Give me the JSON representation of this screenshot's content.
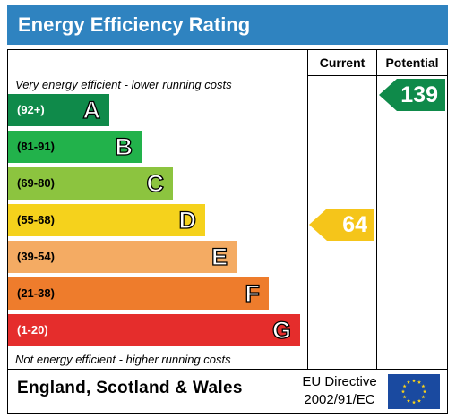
{
  "header": {
    "title": "Energy Efficiency Rating"
  },
  "columns": {
    "current": "Current",
    "potential": "Potential"
  },
  "notes": {
    "top": "Very energy efficient - lower running costs",
    "bottom": "Not energy efficient - higher running costs"
  },
  "chart_data": {
    "type": "bar",
    "title": "Energy Efficiency Rating",
    "bands": [
      {
        "letter": "A",
        "range": "(92+)",
        "color": "#0f8a4a"
      },
      {
        "letter": "B",
        "range": "(81-91)",
        "color": "#22b24b"
      },
      {
        "letter": "C",
        "range": "(69-80)",
        "color": "#8cc43f"
      },
      {
        "letter": "D",
        "range": "(55-68)",
        "color": "#f5d21c"
      },
      {
        "letter": "E",
        "range": "(39-54)",
        "color": "#f4ab63"
      },
      {
        "letter": "F",
        "range": "(21-38)",
        "color": "#ee7c2c"
      },
      {
        "letter": "G",
        "range": "(1-20)",
        "color": "#e52d2c"
      }
    ],
    "current": {
      "value": 64,
      "label": "64",
      "band": "D",
      "color": "#f5c51a"
    },
    "potential": {
      "value": 139,
      "label": "139",
      "band": "A",
      "color": "#0f8a4a"
    }
  },
  "footer": {
    "region": "England, Scotland & Wales",
    "directive_line1": "EU Directive",
    "directive_line2": "2002/91/EC"
  }
}
